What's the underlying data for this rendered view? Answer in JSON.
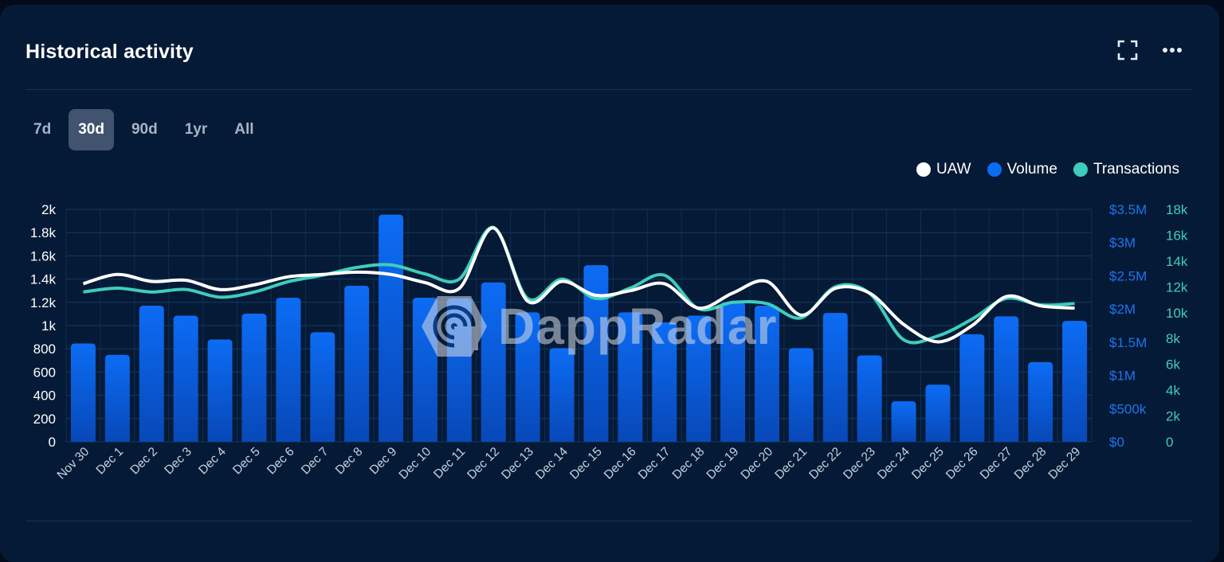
{
  "header": {
    "title": "Historical activity",
    "expand_icon": "expand-icon",
    "more_icon": "more-dots-icon"
  },
  "tabs": [
    {
      "label": "7d",
      "active": false
    },
    {
      "label": "30d",
      "active": true
    },
    {
      "label": "90d",
      "active": false
    },
    {
      "label": "1yr",
      "active": false
    },
    {
      "label": "All",
      "active": false
    }
  ],
  "watermark": {
    "text": "DappRadar",
    "icon": "dappradar-logo-icon"
  },
  "colors": {
    "uaw": "#ffffff",
    "volume": "#0a6cf2",
    "transactions": "#3fcdbb",
    "axis_left": "#ffffff",
    "axis_volume": "#1f74ee",
    "axis_tx": "#3fcdbb"
  },
  "chart_data": {
    "type": "bar",
    "categories": [
      "Nov 30",
      "Dec 1",
      "Dec 2",
      "Dec 3",
      "Dec 4",
      "Dec 5",
      "Dec 6",
      "Dec 7",
      "Dec 8",
      "Dec 9",
      "Dec 10",
      "Dec 11",
      "Dec 12",
      "Dec 13",
      "Dec 14",
      "Dec 15",
      "Dec 16",
      "Dec 17",
      "Dec 18",
      "Dec 19",
      "Dec 20",
      "Dec 21",
      "Dec 22",
      "Dec 23",
      "Dec 24",
      "Dec 25",
      "Dec 26",
      "Dec 27",
      "Dec 28",
      "Dec 29"
    ],
    "series": [
      {
        "name": "Volume",
        "type": "bar",
        "axis": "volume",
        "values": [
          1480000,
          1310000,
          2050000,
          1900000,
          1540000,
          1930000,
          2170000,
          1650000,
          2350000,
          3420000,
          2170000,
          2160000,
          2400000,
          1950000,
          1410000,
          2660000,
          1950000,
          1800000,
          1900000,
          2100000,
          2050000,
          1410000,
          1940000,
          1300000,
          610000,
          860000,
          1620000,
          1890000,
          1200000,
          1820000
        ]
      },
      {
        "name": "UAW",
        "type": "line",
        "axis": "uaw",
        "values": [
          1360,
          1440,
          1380,
          1390,
          1310,
          1350,
          1420,
          1440,
          1460,
          1440,
          1370,
          1320,
          1840,
          1210,
          1380,
          1260,
          1300,
          1360,
          1150,
          1280,
          1380,
          1090,
          1320,
          1280,
          1010,
          860,
          1000,
          1250,
          1170,
          1150
        ]
      },
      {
        "name": "Transactions",
        "type": "line",
        "axis": "transactions",
        "values": [
          11600,
          11900,
          11600,
          11800,
          11200,
          11600,
          12400,
          12900,
          13500,
          13700,
          13000,
          12600,
          16600,
          11100,
          12600,
          11100,
          11900,
          12900,
          10300,
          10800,
          10700,
          9600,
          12000,
          11500,
          7900,
          8200,
          9500,
          11100,
          10600,
          10700
        ]
      }
    ],
    "axes": {
      "uaw": {
        "range": [
          0,
          2000
        ],
        "ticks": [
          "0",
          "200",
          "400",
          "600",
          "800",
          "1k",
          "1.2k",
          "1.4k",
          "1.6k",
          "1.8k",
          "2k"
        ]
      },
      "volume": {
        "range": [
          0,
          3500000
        ],
        "ticks": [
          "$0",
          "$500k",
          "$1M",
          "$1.5M",
          "$2M",
          "$2.5M",
          "$3M",
          "$3.5M"
        ]
      },
      "transactions": {
        "range": [
          0,
          18000
        ],
        "ticks": [
          "0",
          "2k",
          "4k",
          "6k",
          "8k",
          "10k",
          "12k",
          "14k",
          "16k",
          "18k"
        ]
      }
    },
    "legend": {
      "position": "top-right",
      "items": [
        "UAW",
        "Volume",
        "Transactions"
      ]
    },
    "grid": true
  }
}
